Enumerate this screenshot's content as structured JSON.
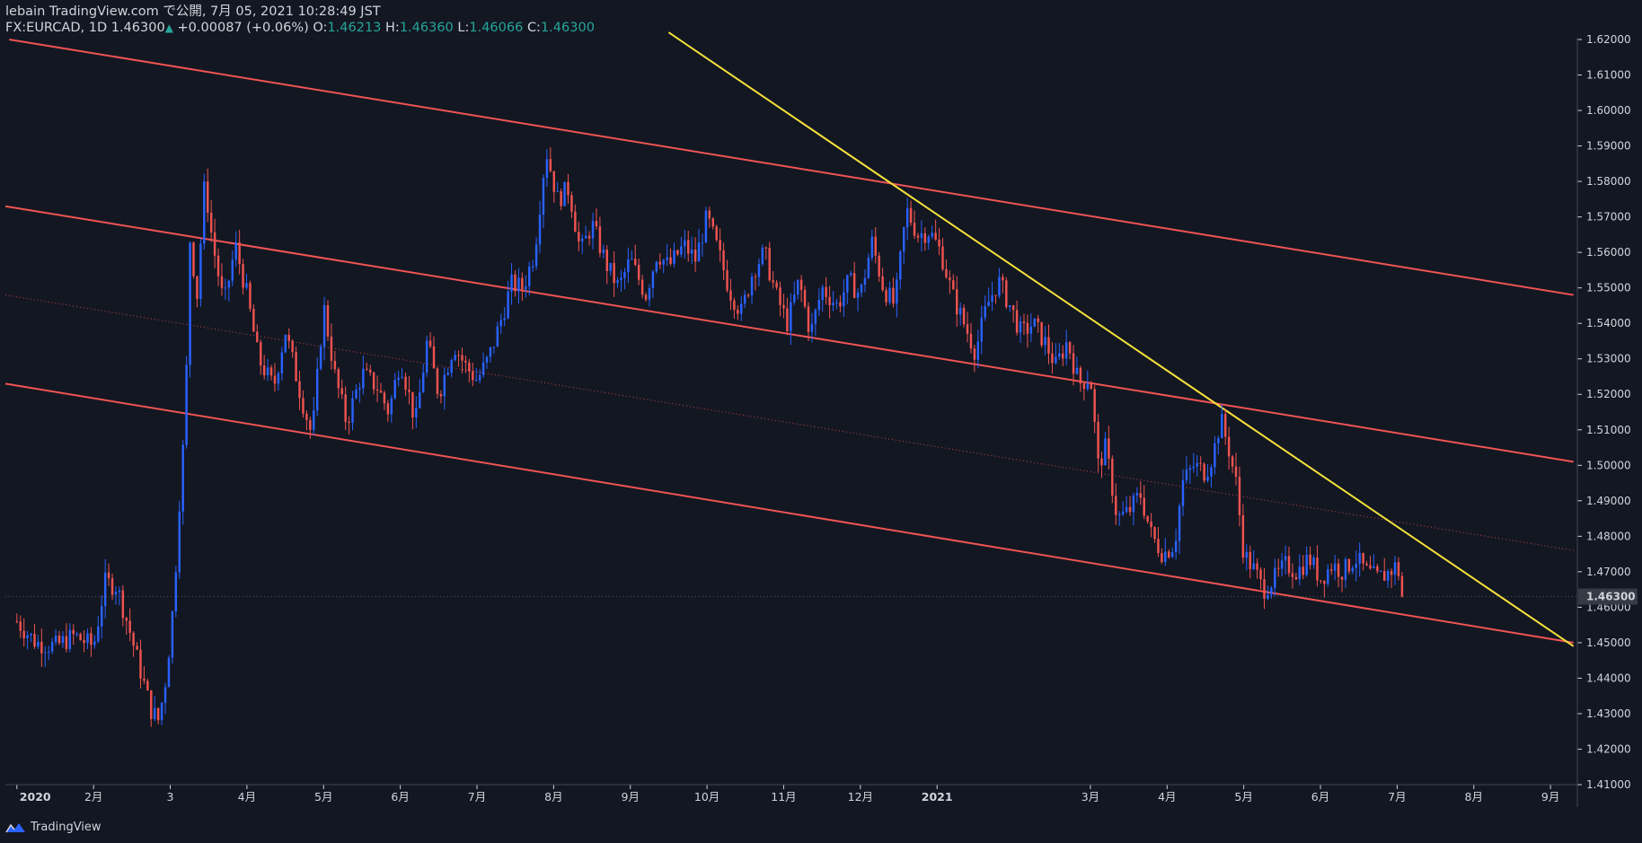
{
  "header": {
    "line1": "lebain TradingView.com で公開, 7月 05, 2021 10:28:49 JST",
    "symbol": "FX:EURCAD, 1D",
    "price": "1.46300",
    "arrow": "▲",
    "change": "+0.00087 (+0.06%)",
    "o_label": "O:",
    "o_value": "1.46213",
    "h_label": "H:",
    "h_value": "1.46360",
    "l_label": "L:",
    "l_value": "1.46066",
    "c_label": "C:",
    "c_value": "1.46300"
  },
  "footer": {
    "brand": "TradingView"
  },
  "colors": {
    "background": "#131722",
    "up": "#2962ff",
    "down": "#ef5350",
    "channel": "#f05454",
    "trendline": "#f5e13b",
    "price_tag_bg": "#363a45"
  },
  "chart_data": {
    "type": "candlestick",
    "symbol": "FX:EURCAD",
    "interval": "1D",
    "ylim": [
      1.41,
      1.62
    ],
    "y_ticks": [
      "1.41000",
      "1.42000",
      "1.43000",
      "1.44000",
      "1.45000",
      "1.46000",
      "1.47000",
      "1.48000",
      "1.49000",
      "1.50000",
      "1.51000",
      "1.52000",
      "1.53000",
      "1.54000",
      "1.55000",
      "1.56000",
      "1.57000",
      "1.58000",
      "1.59000",
      "1.60000",
      "1.61000",
      "1.62000"
    ],
    "last_price": "1.46300",
    "x_ticks": [
      {
        "label": "2020",
        "month": 0
      },
      {
        "label": "2月",
        "month": 1
      },
      {
        "label": "3",
        "month": 2
      },
      {
        "label": "4月",
        "month": 3
      },
      {
        "label": "5月",
        "month": 4
      },
      {
        "label": "6月",
        "month": 5
      },
      {
        "label": "7月",
        "month": 6
      },
      {
        "label": "8月",
        "month": 7
      },
      {
        "label": "9月",
        "month": 8
      },
      {
        "label": "10月",
        "month": 9
      },
      {
        "label": "11月",
        "month": 10
      },
      {
        "label": "12月",
        "month": 11
      },
      {
        "label": "2021",
        "month": 12
      },
      {
        "label": "3月",
        "month": 14
      },
      {
        "label": "4月",
        "month": 15
      },
      {
        "label": "5月",
        "month": 16
      },
      {
        "label": "6月",
        "month": 17
      },
      {
        "label": "7月",
        "month": 18
      },
      {
        "label": "8月",
        "month": 19
      },
      {
        "label": "9月",
        "month": 20
      }
    ],
    "x_range_months": [
      -0.15,
      20.35
    ],
    "closes": [
      {
        "m": 0.0,
        "c": 1.456
      },
      {
        "m": 0.25,
        "c": 1.45
      },
      {
        "m": 0.5,
        "c": 1.449
      },
      {
        "m": 0.75,
        "c": 1.452
      },
      {
        "m": 1.0,
        "c": 1.449
      },
      {
        "m": 1.15,
        "c": 1.467
      },
      {
        "m": 1.3,
        "c": 1.466
      },
      {
        "m": 1.45,
        "c": 1.455
      },
      {
        "m": 1.6,
        "c": 1.443
      },
      {
        "m": 1.75,
        "c": 1.431
      },
      {
        "m": 1.85,
        "c": 1.428
      },
      {
        "m": 1.95,
        "c": 1.441
      },
      {
        "m": 2.05,
        "c": 1.463
      },
      {
        "m": 2.12,
        "c": 1.49
      },
      {
        "m": 2.2,
        "c": 1.515
      },
      {
        "m": 2.25,
        "c": 1.565
      },
      {
        "m": 2.35,
        "c": 1.548
      },
      {
        "m": 2.45,
        "c": 1.58
      },
      {
        "m": 2.55,
        "c": 1.563
      },
      {
        "m": 2.7,
        "c": 1.545
      },
      {
        "m": 2.85,
        "c": 1.562
      },
      {
        "m": 3.0,
        "c": 1.548
      },
      {
        "m": 3.15,
        "c": 1.53
      },
      {
        "m": 3.35,
        "c": 1.522
      },
      {
        "m": 3.5,
        "c": 1.538
      },
      {
        "m": 3.7,
        "c": 1.52
      },
      {
        "m": 3.85,
        "c": 1.508
      },
      {
        "m": 4.0,
        "c": 1.545
      },
      {
        "m": 4.15,
        "c": 1.525
      },
      {
        "m": 4.3,
        "c": 1.512
      },
      {
        "m": 4.5,
        "c": 1.526
      },
      {
        "m": 4.7,
        "c": 1.522
      },
      {
        "m": 4.85,
        "c": 1.515
      },
      {
        "m": 5.0,
        "c": 1.53
      },
      {
        "m": 5.2,
        "c": 1.512
      },
      {
        "m": 5.35,
        "c": 1.535
      },
      {
        "m": 5.5,
        "c": 1.52
      },
      {
        "m": 5.7,
        "c": 1.534
      },
      {
        "m": 5.85,
        "c": 1.528
      },
      {
        "m": 6.0,
        "c": 1.524
      },
      {
        "m": 6.15,
        "c": 1.53
      },
      {
        "m": 6.3,
        "c": 1.54
      },
      {
        "m": 6.45,
        "c": 1.551
      },
      {
        "m": 6.6,
        "c": 1.55
      },
      {
        "m": 6.75,
        "c": 1.56
      },
      {
        "m": 6.9,
        "c": 1.589
      },
      {
        "m": 7.05,
        "c": 1.575
      },
      {
        "m": 7.2,
        "c": 1.578
      },
      {
        "m": 7.35,
        "c": 1.56
      },
      {
        "m": 7.5,
        "c": 1.568
      },
      {
        "m": 7.7,
        "c": 1.556
      },
      {
        "m": 7.85,
        "c": 1.55
      },
      {
        "m": 8.0,
        "c": 1.558
      },
      {
        "m": 8.2,
        "c": 1.548
      },
      {
        "m": 8.35,
        "c": 1.56
      },
      {
        "m": 8.5,
        "c": 1.556
      },
      {
        "m": 8.7,
        "c": 1.562
      },
      {
        "m": 8.85,
        "c": 1.558
      },
      {
        "m": 9.0,
        "c": 1.57
      },
      {
        "m": 9.15,
        "c": 1.56
      },
      {
        "m": 9.3,
        "c": 1.549
      },
      {
        "m": 9.45,
        "c": 1.543
      },
      {
        "m": 9.6,
        "c": 1.555
      },
      {
        "m": 9.75,
        "c": 1.56
      },
      {
        "m": 9.9,
        "c": 1.548
      },
      {
        "m": 10.05,
        "c": 1.54
      },
      {
        "m": 10.2,
        "c": 1.552
      },
      {
        "m": 10.35,
        "c": 1.537
      },
      {
        "m": 10.5,
        "c": 1.55
      },
      {
        "m": 10.7,
        "c": 1.545
      },
      {
        "m": 10.85,
        "c": 1.552
      },
      {
        "m": 11.0,
        "c": 1.548
      },
      {
        "m": 11.15,
        "c": 1.563
      },
      {
        "m": 11.3,
        "c": 1.55
      },
      {
        "m": 11.45,
        "c": 1.545
      },
      {
        "m": 11.6,
        "c": 1.572
      },
      {
        "m": 11.75,
        "c": 1.565
      },
      {
        "m": 11.9,
        "c": 1.566
      },
      {
        "m": 12.05,
        "c": 1.56
      },
      {
        "m": 12.2,
        "c": 1.548
      },
      {
        "m": 12.35,
        "c": 1.54
      },
      {
        "m": 12.5,
        "c": 1.532
      },
      {
        "m": 12.65,
        "c": 1.545
      },
      {
        "m": 12.8,
        "c": 1.552
      },
      {
        "m": 12.95,
        "c": 1.545
      },
      {
        "m": 13.1,
        "c": 1.537
      },
      {
        "m": 13.25,
        "c": 1.54
      },
      {
        "m": 13.4,
        "c": 1.535
      },
      {
        "m": 13.55,
        "c": 1.528
      },
      {
        "m": 13.7,
        "c": 1.535
      },
      {
        "m": 13.85,
        "c": 1.523
      },
      {
        "m": 14.0,
        "c": 1.525
      },
      {
        "m": 14.1,
        "c": 1.5
      },
      {
        "m": 14.2,
        "c": 1.505
      },
      {
        "m": 14.35,
        "c": 1.485
      },
      {
        "m": 14.5,
        "c": 1.487
      },
      {
        "m": 14.65,
        "c": 1.492
      },
      {
        "m": 14.8,
        "c": 1.48
      },
      {
        "m": 14.95,
        "c": 1.475
      },
      {
        "m": 15.1,
        "c": 1.478
      },
      {
        "m": 15.2,
        "c": 1.495
      },
      {
        "m": 15.35,
        "c": 1.5
      },
      {
        "m": 15.5,
        "c": 1.498
      },
      {
        "m": 15.6,
        "c": 1.503
      },
      {
        "m": 15.7,
        "c": 1.513
      },
      {
        "m": 15.8,
        "c": 1.505
      },
      {
        "m": 15.9,
        "c": 1.495
      },
      {
        "m": 16.0,
        "c": 1.475
      },
      {
        "m": 16.15,
        "c": 1.47
      },
      {
        "m": 16.25,
        "c": 1.465
      },
      {
        "m": 16.4,
        "c": 1.468
      },
      {
        "m": 16.55,
        "c": 1.472
      },
      {
        "m": 16.7,
        "c": 1.47
      },
      {
        "m": 16.85,
        "c": 1.474
      },
      {
        "m": 17.0,
        "c": 1.468
      },
      {
        "m": 17.15,
        "c": 1.472
      },
      {
        "m": 17.3,
        "c": 1.47
      },
      {
        "m": 17.45,
        "c": 1.474
      },
      {
        "m": 17.6,
        "c": 1.47
      },
      {
        "m": 17.75,
        "c": 1.468
      },
      {
        "m": 17.9,
        "c": 1.47
      },
      {
        "m": 18.0,
        "c": 1.472
      },
      {
        "m": 18.08,
        "c": 1.463
      }
    ],
    "lines": [
      {
        "name": "channel-top",
        "style": "solid",
        "color": "channel",
        "points": [
          [
            -0.1,
            1.62
          ],
          [
            20.3,
            1.548
          ]
        ]
      },
      {
        "name": "channel-middle",
        "style": "solid",
        "color": "channel",
        "points": [
          [
            -0.15,
            1.573
          ],
          [
            20.3,
            1.501
          ]
        ]
      },
      {
        "name": "channel-midline",
        "style": "dotted",
        "color": "channel",
        "points": [
          [
            -0.15,
            1.548
          ],
          [
            20.3,
            1.476
          ]
        ]
      },
      {
        "name": "channel-bottom",
        "style": "solid",
        "color": "channel",
        "points": [
          [
            -0.15,
            1.523
          ],
          [
            20.3,
            1.45
          ]
        ]
      },
      {
        "name": "trendline",
        "style": "solid",
        "color": "trendline",
        "points": [
          [
            8.5,
            1.622
          ],
          [
            20.3,
            1.449
          ]
        ]
      }
    ]
  }
}
